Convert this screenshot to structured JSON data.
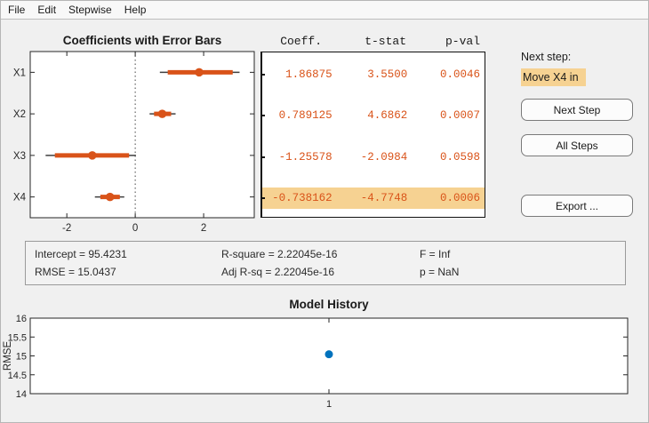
{
  "menu": {
    "items": [
      "File",
      "Edit",
      "Stepwise",
      "Help"
    ]
  },
  "colors": {
    "accent_orange": "#D95319",
    "accent_blue": "#0072BD",
    "highlight": "#F6D292",
    "window_bg": "#F0F0F0",
    "whisker": "#3f3f3f"
  },
  "table": {
    "headers": [
      "Coeff.",
      "t-stat",
      "p-val"
    ],
    "rows": [
      {
        "coeff": "1.86875",
        "t_stat": "3.5500",
        "p_val": "0.0046"
      },
      {
        "coeff": "0.789125",
        "t_stat": "4.6862",
        "p_val": "0.0007"
      },
      {
        "coeff": "-1.25578",
        "t_stat": "-2.0984",
        "p_val": "0.0598"
      },
      {
        "coeff": "-0.738162",
        "t_stat": "-4.7748",
        "p_val": "0.0006"
      }
    ],
    "highlighted_row": 3
  },
  "next_step": {
    "label": "Next step:",
    "value": "Move X4 in",
    "buttons": [
      "Next Step",
      "All Steps",
      "Export ..."
    ]
  },
  "stats": {
    "items": [
      "Intercept = 95.4231",
      "R-square = 2.22045e-16",
      "F = Inf",
      "RMSE = 15.0437",
      "Adj R-sq = 2.22045e-16",
      "p = NaN"
    ]
  },
  "chart_data": [
    {
      "type": "scatter",
      "subtype": "horizontal-error-bars",
      "title": "Coefficients with Error Bars",
      "categories": [
        "X1",
        "X2",
        "X3",
        "X4"
      ],
      "series": [
        {
          "name": "coefficient",
          "values": [
            1.86875,
            0.789125,
            -1.25578,
            -0.738162
          ]
        }
      ],
      "inner_intervals": [
        [
          0.95,
          2.85
        ],
        [
          0.55,
          1.05
        ],
        [
          -2.35,
          -0.18
        ],
        [
          -1.02,
          -0.45
        ]
      ],
      "outer_intervals": [
        [
          0.72,
          3.05
        ],
        [
          0.42,
          1.18
        ],
        [
          -2.62,
          0.02
        ],
        [
          -1.18,
          -0.32
        ]
      ],
      "xticks": [
        -2,
        0,
        2
      ],
      "xlim": [
        -3.07,
        3.48
      ],
      "zero_reference_line": true,
      "grid": false,
      "legend": "none"
    },
    {
      "type": "scatter",
      "title": "Model History",
      "x": [
        1
      ],
      "y": [
        15.0437
      ],
      "xlabel": "",
      "ylabel": "RMSE",
      "xticks": [
        1
      ],
      "xlim": [
        0.5,
        1.5
      ],
      "yticks": [
        14,
        14.5,
        15,
        15.5,
        16
      ],
      "ylim": [
        14,
        16
      ],
      "grid": false,
      "legend": "none"
    }
  ]
}
